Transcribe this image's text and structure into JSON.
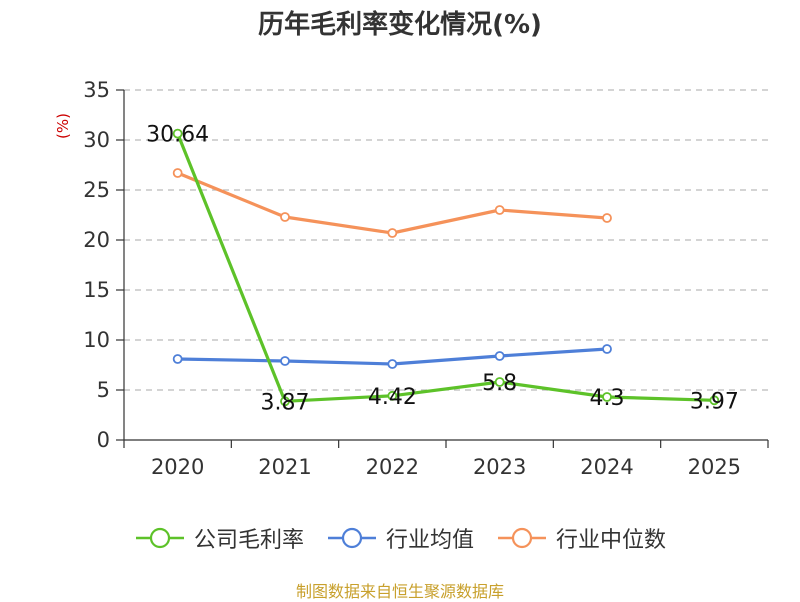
{
  "chart_data": {
    "type": "line",
    "title": "历年毛利率变化情况(%)",
    "ylabel": "(%)",
    "categories": [
      "2020",
      "2021",
      "2022",
      "2023",
      "2024",
      "2025"
    ],
    "ylim": [
      0,
      35
    ],
    "yticks": [
      0,
      5,
      10,
      15,
      20,
      25,
      30,
      35
    ],
    "grid": true,
    "legend_position": "bottom",
    "series": [
      {
        "name": "公司毛利率",
        "color": "#5dc229",
        "values": [
          30.64,
          3.87,
          4.42,
          5.8,
          4.3,
          3.97
        ],
        "labels": [
          "30.64",
          "3.87",
          "4.42",
          "5.8",
          "4.3",
          "3.97"
        ]
      },
      {
        "name": "行业均值",
        "color": "#4e7fd8",
        "values": [
          8.1,
          7.9,
          7.6,
          8.4,
          9.1,
          null
        ]
      },
      {
        "name": "行业中位数",
        "color": "#f5925a",
        "values": [
          26.7,
          22.3,
          20.7,
          23.0,
          22.2,
          null
        ]
      }
    ]
  },
  "source": {
    "text": "制图数据来自恒生聚源数据库",
    "color": "#c8a02c"
  },
  "colors": {
    "axis": "#333333",
    "grid": "#bbbbbb",
    "ylabel": "#cc0000"
  }
}
